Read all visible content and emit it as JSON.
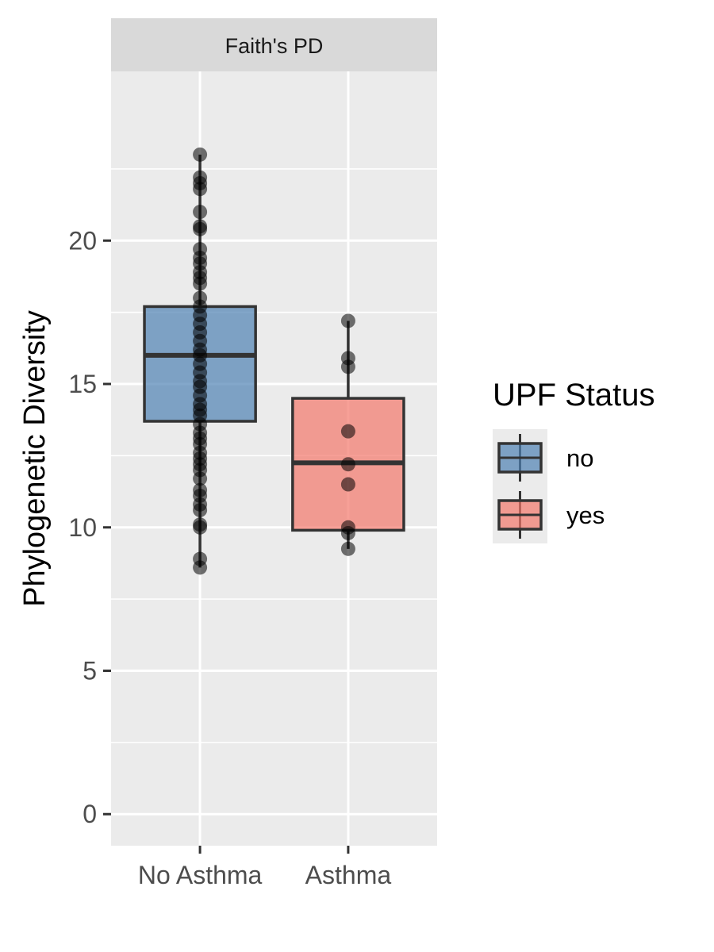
{
  "chart_data": {
    "type": "box",
    "facet_label": "Faith's PD",
    "xlabel": "",
    "ylabel": "Phylogenetic Diversity",
    "ylim": [
      -1.1,
      25.9
    ],
    "y_ticks": [
      0,
      5,
      10,
      15,
      20
    ],
    "y_tick_labels": [
      "0",
      "5",
      "10",
      "15",
      "20"
    ],
    "categories": [
      "No Asthma",
      "Asthma"
    ],
    "grid": true,
    "legend": {
      "title": "UPF Status",
      "position": "right",
      "entries": [
        {
          "label": "no",
          "color": "#4f81b3"
        },
        {
          "label": "yes",
          "color": "#f4776b"
        }
      ]
    },
    "boxes": [
      {
        "category": "No Asthma",
        "group": "no",
        "color": "#4f81b3",
        "min": 8.6,
        "q1": 13.7,
        "median": 16.0,
        "q3": 17.7,
        "max": 23.0,
        "points": [
          8.6,
          8.9,
          10.0,
          10.1,
          10.6,
          10.8,
          11.1,
          11.3,
          11.7,
          12.0,
          12.2,
          12.4,
          12.6,
          12.9,
          13.1,
          13.3,
          13.6,
          13.9,
          14.1,
          14.3,
          14.6,
          14.9,
          15.1,
          15.4,
          15.7,
          16.0,
          16.2,
          16.5,
          16.8,
          17.1,
          17.4,
          17.7,
          18.0,
          18.5,
          18.7,
          18.9,
          19.2,
          19.4,
          19.7,
          20.4,
          20.5,
          21.0,
          21.8,
          22.0,
          22.2,
          23.0
        ]
      },
      {
        "category": "Asthma",
        "group": "yes",
        "color": "#f4776b",
        "min": 9.25,
        "q1": 9.9,
        "median": 12.25,
        "q3": 14.5,
        "max": 17.2,
        "points": [
          9.25,
          9.8,
          10.0,
          11.5,
          12.2,
          13.35,
          15.6,
          15.9,
          17.2
        ]
      }
    ]
  }
}
